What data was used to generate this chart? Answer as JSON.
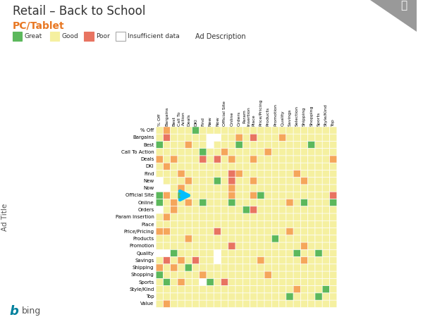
{
  "title": "Retail – Back to School",
  "subtitle": "PC/Tablet",
  "title_color": "#333333",
  "subtitle_color": "#E87722",
  "col_labels": [
    "% Off",
    "Bargains",
    "Best",
    "Call To\nAction",
    "Deals",
    "DKI",
    "Find",
    "New",
    "Now",
    "Official Site",
    "Online",
    "Orders",
    "Param\nInsertion",
    "Place",
    "Price/Pricing",
    "Products",
    "Promotion",
    "Quality",
    "Savings",
    "Selection",
    "Shipping",
    "Shopping",
    "Sports",
    "Style/Kind",
    "Top"
  ],
  "row_labels": [
    "% Off",
    "Bargains",
    "Best",
    "Call To Action",
    "Deals",
    "DKI",
    "Find",
    "New",
    "Now",
    "Official Site",
    "Online",
    "Orders",
    "Param Insertion",
    "Place",
    "Price/Pricing",
    "Products",
    "Promotion",
    "Quality",
    "Savings",
    "Shipping",
    "Shopping",
    "Sports",
    "Style/Kind",
    "Top",
    "Value"
  ],
  "colors": {
    "great": "#5cb85c",
    "good": "#f5f0a0",
    "poor": "#e87461",
    "insufficient": "#ffffff",
    "orange": "#f5a65b"
  },
  "grid_color": "#ffffff",
  "bg_color": "#ffffff",
  "arrow_color": "#00BFFF",
  "data": [
    [
      "Y",
      "O",
      "Y",
      "Y",
      "Y",
      "G",
      "Y",
      "Y",
      "Y",
      "Y",
      "Y",
      "Y",
      "Y",
      "Y",
      "Y",
      "Y",
      "Y",
      "Y",
      "Y",
      "Y",
      "Y",
      "Y",
      "Y",
      "Y",
      "Y"
    ],
    [
      "Y",
      "R",
      "Y",
      "Y",
      "Y",
      "Y",
      "Y",
      "W",
      "W",
      "Y",
      "Y",
      "O",
      "Y",
      "R",
      "Y",
      "Y",
      "Y",
      "O",
      "Y",
      "Y",
      "Y",
      "Y",
      "Y",
      "Y",
      "Y"
    ],
    [
      "G",
      "Y",
      "Y",
      "Y",
      "O",
      "Y",
      "Y",
      "W",
      "Y",
      "Y",
      "Y",
      "G",
      "Y",
      "Y",
      "Y",
      "Y",
      "Y",
      "Y",
      "Y",
      "Y",
      "Y",
      "G",
      "Y",
      "Y",
      "Y"
    ],
    [
      "Y",
      "Y",
      "Y",
      "Y",
      "Y",
      "Y",
      "G",
      "Y",
      "Y",
      "O",
      "Y",
      "Y",
      "Y",
      "Y",
      "Y",
      "O",
      "Y",
      "Y",
      "Y",
      "Y",
      "Y",
      "Y",
      "Y",
      "Y",
      "Y"
    ],
    [
      "O",
      "Y",
      "O",
      "Y",
      "Y",
      "Y",
      "R",
      "Y",
      "R",
      "Y",
      "O",
      "Y",
      "Y",
      "O",
      "Y",
      "Y",
      "Y",
      "Y",
      "Y",
      "Y",
      "Y",
      "Y",
      "Y",
      "Y",
      "O"
    ],
    [
      "Y",
      "O",
      "Y",
      "Y",
      "Y",
      "Y",
      "Y",
      "Y",
      "Y",
      "Y",
      "Y",
      "Y",
      "Y",
      "Y",
      "Y",
      "Y",
      "Y",
      "Y",
      "Y",
      "Y",
      "Y",
      "Y",
      "Y",
      "Y",
      "Y"
    ],
    [
      "Y",
      "Y",
      "Y",
      "O",
      "Y",
      "Y",
      "Y",
      "Y",
      "Y",
      "Y",
      "R",
      "O",
      "Y",
      "Y",
      "Y",
      "Y",
      "Y",
      "Y",
      "Y",
      "O",
      "Y",
      "Y",
      "Y",
      "Y",
      "Y"
    ],
    [
      "W",
      "Y",
      "Y",
      "Y",
      "O",
      "Y",
      "Y",
      "Y",
      "G",
      "Y",
      "R",
      "Y",
      "Y",
      "O",
      "Y",
      "Y",
      "Y",
      "Y",
      "Y",
      "Y",
      "O",
      "Y",
      "Y",
      "Y",
      "Y"
    ],
    [
      "W",
      "W",
      "Y",
      "O",
      "Y",
      "Y",
      "Y",
      "Y",
      "Y",
      "Y",
      "O",
      "Y",
      "Y",
      "Y",
      "Y",
      "Y",
      "Y",
      "Y",
      "Y",
      "Y",
      "Y",
      "Y",
      "Y",
      "Y",
      "Y"
    ],
    [
      "G",
      "O",
      "Y",
      "G",
      "Y",
      "Y",
      "Y",
      "Y",
      "Y",
      "Y",
      "O",
      "Y",
      "Y",
      "O",
      "G",
      "Y",
      "Y",
      "Y",
      "Y",
      "Y",
      "Y",
      "Y",
      "Y",
      "Y",
      "R"
    ],
    [
      "G",
      "Y",
      "O",
      "Y",
      "O",
      "Y",
      "G",
      "Y",
      "Y",
      "Y",
      "G",
      "Y",
      "Y",
      "Y",
      "Y",
      "Y",
      "Y",
      "Y",
      "O",
      "Y",
      "G",
      "Y",
      "Y",
      "Y",
      "G"
    ],
    [
      "W",
      "Y",
      "O",
      "Y",
      "Y",
      "Y",
      "Y",
      "Y",
      "Y",
      "Y",
      "Y",
      "Y",
      "G",
      "R",
      "Y",
      "Y",
      "Y",
      "Y",
      "Y",
      "Y",
      "Y",
      "Y",
      "Y",
      "Y",
      "Y"
    ],
    [
      "Y",
      "O",
      "Y",
      "Y",
      "Y",
      "Y",
      "Y",
      "Y",
      "Y",
      "Y",
      "Y",
      "Y",
      "Y",
      "Y",
      "Y",
      "Y",
      "Y",
      "Y",
      "Y",
      "Y",
      "Y",
      "Y",
      "Y",
      "Y",
      "Y"
    ],
    [
      "Y",
      "Y",
      "Y",
      "Y",
      "Y",
      "Y",
      "Y",
      "Y",
      "Y",
      "Y",
      "Y",
      "Y",
      "Y",
      "Y",
      "Y",
      "Y",
      "Y",
      "Y",
      "Y",
      "Y",
      "Y",
      "Y",
      "Y",
      "Y",
      "Y"
    ],
    [
      "O",
      "O",
      "Y",
      "Y",
      "Y",
      "Y",
      "Y",
      "Y",
      "R",
      "Y",
      "Y",
      "Y",
      "Y",
      "Y",
      "Y",
      "Y",
      "Y",
      "Y",
      "O",
      "Y",
      "Y",
      "Y",
      "Y",
      "Y",
      "Y"
    ],
    [
      "Y",
      "Y",
      "Y",
      "Y",
      "O",
      "Y",
      "Y",
      "Y",
      "Y",
      "Y",
      "Y",
      "Y",
      "Y",
      "Y",
      "Y",
      "Y",
      "G",
      "Y",
      "Y",
      "Y",
      "Y",
      "Y",
      "Y",
      "Y",
      "Y"
    ],
    [
      "Y",
      "Y",
      "Y",
      "Y",
      "Y",
      "Y",
      "Y",
      "Y",
      "Y",
      "Y",
      "R",
      "Y",
      "Y",
      "Y",
      "Y",
      "Y",
      "Y",
      "Y",
      "Y",
      "Y",
      "O",
      "Y",
      "Y",
      "Y",
      "Y"
    ],
    [
      "W",
      "W",
      "G",
      "Y",
      "Y",
      "Y",
      "Y",
      "Y",
      "W",
      "Y",
      "Y",
      "Y",
      "Y",
      "Y",
      "Y",
      "Y",
      "Y",
      "Y",
      "Y",
      "G",
      "Y",
      "Y",
      "G",
      "Y",
      "Y"
    ],
    [
      "Y",
      "R",
      "Y",
      "O",
      "Y",
      "R",
      "Y",
      "Y",
      "W",
      "Y",
      "Y",
      "Y",
      "Y",
      "Y",
      "O",
      "Y",
      "Y",
      "Y",
      "Y",
      "Y",
      "O",
      "Y",
      "Y",
      "Y",
      "Y"
    ],
    [
      "O",
      "Y",
      "O",
      "Y",
      "G",
      "Y",
      "Y",
      "Y",
      "Y",
      "Y",
      "Y",
      "Y",
      "Y",
      "Y",
      "Y",
      "Y",
      "Y",
      "Y",
      "Y",
      "Y",
      "Y",
      "Y",
      "Y",
      "Y",
      "Y"
    ],
    [
      "G",
      "Y",
      "Y",
      "Y",
      "Y",
      "Y",
      "O",
      "Y",
      "Y",
      "Y",
      "Y",
      "Y",
      "Y",
      "Y",
      "Y",
      "O",
      "Y",
      "Y",
      "Y",
      "Y",
      "Y",
      "Y",
      "Y",
      "Y",
      "Y"
    ],
    [
      "Y",
      "G",
      "Y",
      "O",
      "Y",
      "Y",
      "W",
      "G",
      "Y",
      "R",
      "Y",
      "Y",
      "Y",
      "Y",
      "Y",
      "Y",
      "Y",
      "Y",
      "Y",
      "Y",
      "Y",
      "Y",
      "Y",
      "Y",
      "Y"
    ],
    [
      "Y",
      "Y",
      "Y",
      "Y",
      "Y",
      "Y",
      "Y",
      "Y",
      "Y",
      "Y",
      "Y",
      "Y",
      "Y",
      "Y",
      "Y",
      "Y",
      "Y",
      "Y",
      "Y",
      "O",
      "Y",
      "Y",
      "Y",
      "G",
      "Y"
    ],
    [
      "Y",
      "Y",
      "Y",
      "Y",
      "Y",
      "Y",
      "Y",
      "Y",
      "Y",
      "Y",
      "Y",
      "Y",
      "Y",
      "Y",
      "Y",
      "Y",
      "Y",
      "Y",
      "G",
      "Y",
      "Y",
      "Y",
      "G",
      "Y",
      "Y"
    ],
    [
      "Y",
      "O",
      "Y",
      "Y",
      "Y",
      "Y",
      "Y",
      "Y",
      "Y",
      "Y",
      "Y",
      "Y",
      "Y",
      "Y",
      "Y",
      "Y",
      "Y",
      "Y",
      "Y",
      "Y",
      "Y",
      "Y",
      "Y",
      "Y",
      "Y"
    ]
  ]
}
